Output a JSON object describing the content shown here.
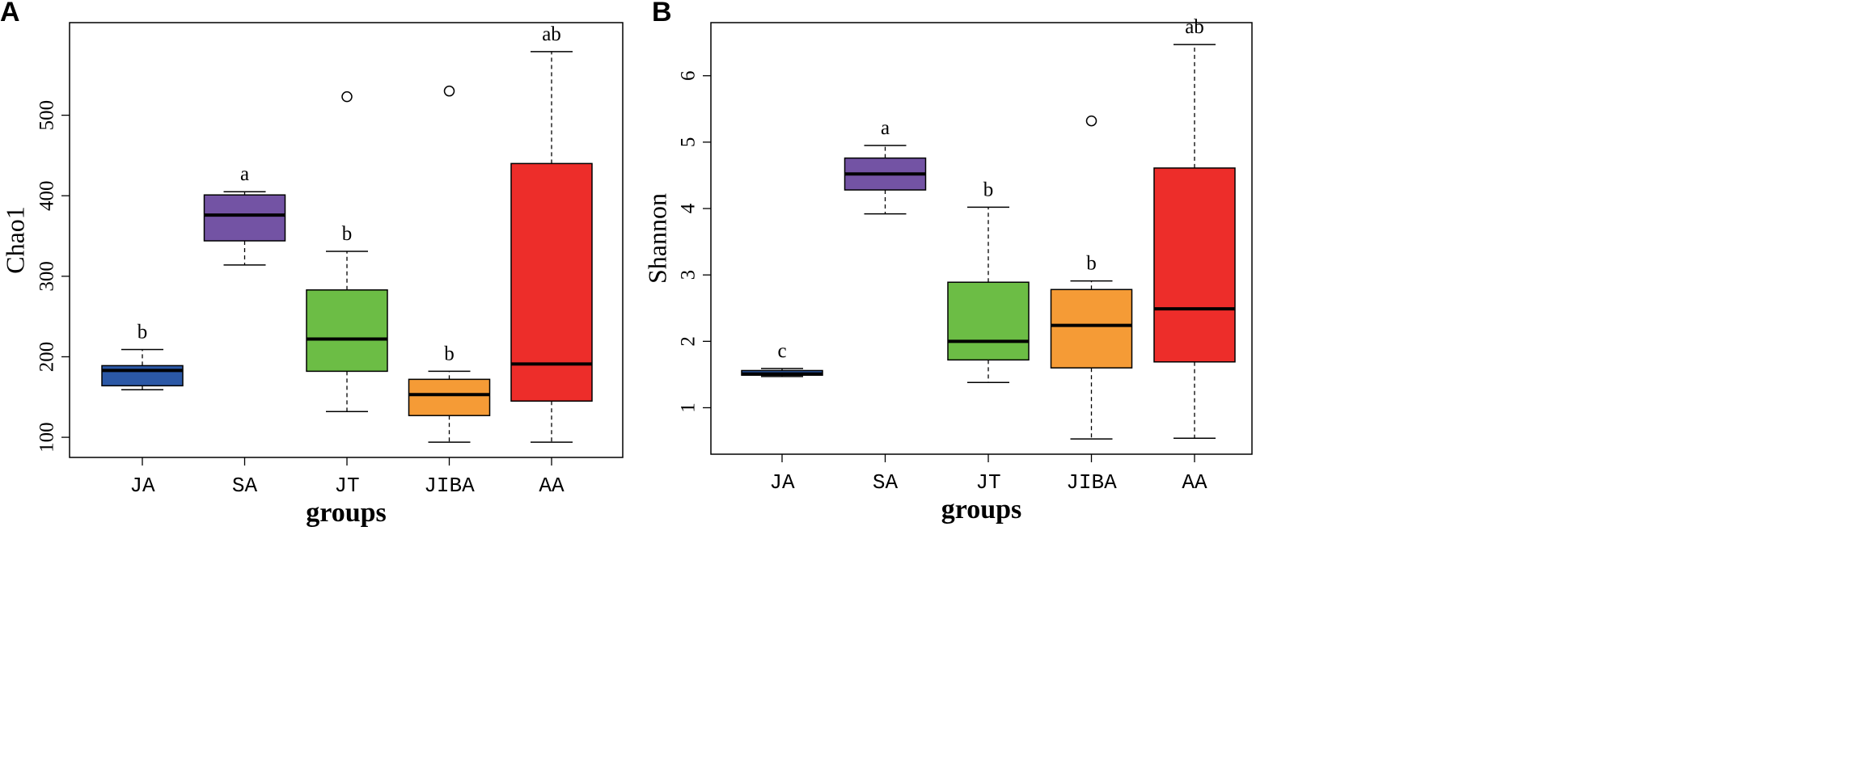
{
  "chart_data": [
    {
      "panel": "A",
      "type": "boxplot",
      "xlabel": "groups",
      "ylabel": "Chao1",
      "ylim": [
        75,
        615
      ],
      "yticks": [
        100,
        200,
        300,
        400,
        500
      ],
      "categories": [
        "JA",
        "SA",
        "JT",
        "JIBA",
        "AA"
      ],
      "colors": [
        "#2b58a6",
        "#7353a4",
        "#6cbd45",
        "#f59b36",
        "#ed2d2a"
      ],
      "boxes": [
        {
          "min": 159,
          "q1": 164,
          "median": 183,
          "q3": 189,
          "max": 209,
          "outliers": [],
          "sig": "b"
        },
        {
          "min": 314,
          "q1": 344,
          "median": 376,
          "q3": 401,
          "max": 405,
          "outliers": [],
          "sig": "a"
        },
        {
          "min": 132,
          "q1": 182,
          "median": 222,
          "q3": 283,
          "max": 331,
          "outliers": [
            523
          ],
          "sig": "b"
        },
        {
          "min": 94,
          "q1": 127,
          "median": 153,
          "q3": 172,
          "max": 182,
          "outliers": [
            530
          ],
          "sig": "b"
        },
        {
          "min": 94,
          "q1": 145,
          "median": 191,
          "q3": 440,
          "max": 579,
          "outliers": [],
          "sig": "ab"
        }
      ]
    },
    {
      "panel": "B",
      "type": "boxplot",
      "xlabel": "groups",
      "ylabel": "Shannon",
      "ylim": [
        0.3,
        6.8
      ],
      "yticks": [
        1,
        2,
        3,
        4,
        5,
        6
      ],
      "categories": [
        "JA",
        "SA",
        "JT",
        "JIBA",
        "AA"
      ],
      "colors": [
        "#2b58a6",
        "#7353a4",
        "#6cbd45",
        "#f59b36",
        "#ed2d2a"
      ],
      "boxes": [
        {
          "min": 1.47,
          "q1": 1.49,
          "median": 1.51,
          "q3": 1.56,
          "max": 1.59,
          "outliers": [],
          "sig": "c"
        },
        {
          "min": 3.92,
          "q1": 4.28,
          "median": 4.52,
          "q3": 4.76,
          "max": 4.95,
          "outliers": [],
          "sig": "a"
        },
        {
          "min": 1.38,
          "q1": 1.72,
          "median": 2.0,
          "q3": 2.89,
          "max": 4.02,
          "outliers": [],
          "sig": "b"
        },
        {
          "min": 0.53,
          "q1": 1.6,
          "median": 2.24,
          "q3": 2.78,
          "max": 2.91,
          "outliers": [
            5.32
          ],
          "sig": "b"
        },
        {
          "min": 0.54,
          "q1": 1.69,
          "median": 2.49,
          "q3": 4.61,
          "max": 6.47,
          "outliers": [],
          "sig": "ab"
        }
      ]
    }
  ]
}
